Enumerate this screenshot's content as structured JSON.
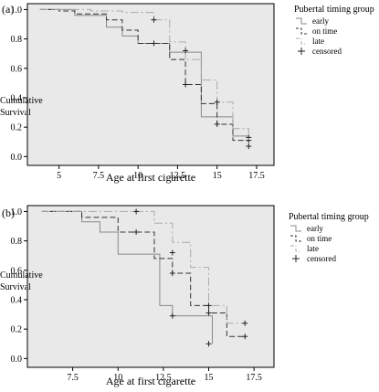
{
  "chart_data": [
    {
      "type": "line",
      "panel_label": "(a)",
      "xlabel": "Age at first cigarette",
      "ylabel_lines": [
        "Cumulative",
        "Survival"
      ],
      "xlim": [
        3,
        18.6
      ],
      "ylim": [
        -0.06,
        1.04
      ],
      "x_ticks": [
        5,
        7.5,
        10,
        12.5,
        15,
        17.5
      ],
      "x_tick_labels": [
        "5",
        "7.5",
        "10",
        "12.5",
        "15",
        "17.5"
      ],
      "y_ticks": [
        0,
        0.2,
        0.4,
        0.6,
        0.8,
        1.0
      ],
      "y_tick_labels": [
        "0.0",
        "0.2",
        "0.4",
        "0.6",
        "0.8",
        "1.0"
      ],
      "grid": false,
      "legend": {
        "title": "Pubertal timing group",
        "position": "right",
        "entries": [
          "early",
          "on time",
          "late",
          "censored"
        ]
      },
      "series": [
        {
          "name": "early",
          "color": "#888888",
          "dash": "solid",
          "steps": [
            [
              3.8,
              1.0
            ],
            [
              6,
              0.96
            ],
            [
              8,
              0.88
            ],
            [
              9,
              0.82
            ],
            [
              10,
              0.77
            ],
            [
              12,
              0.71
            ],
            [
              14,
              0.27
            ],
            [
              15,
              0.27
            ],
            [
              16,
              0.14
            ],
            [
              17,
              0.14
            ]
          ],
          "censored": [
            [
              17,
              0.13
            ]
          ]
        },
        {
          "name": "on time",
          "color": "#333333",
          "dash": "dashed",
          "steps": [
            [
              3.8,
              1.0
            ],
            [
              5,
              0.99
            ],
            [
              6,
              0.97
            ],
            [
              8,
              0.93
            ],
            [
              9,
              0.86
            ],
            [
              10,
              0.77
            ],
            [
              12,
              0.66
            ],
            [
              13,
              0.49
            ],
            [
              14,
              0.36
            ],
            [
              15,
              0.22
            ],
            [
              16,
              0.11
            ],
            [
              17,
              0.11
            ]
          ],
          "censored": [
            [
              11,
              0.77
            ],
            [
              13,
              0.49
            ],
            [
              15,
              0.22
            ],
            [
              17,
              0.11
            ]
          ]
        },
        {
          "name": "late",
          "color": "#aaaaaa",
          "dash": "dashdot",
          "steps": [
            [
              3.8,
              1.0
            ],
            [
              7,
              0.99
            ],
            [
              9,
              0.98
            ],
            [
              11,
              0.93
            ],
            [
              12,
              0.78
            ],
            [
              13,
              0.66
            ],
            [
              14,
              0.52
            ],
            [
              15,
              0.37
            ],
            [
              16,
              0.19
            ],
            [
              17,
              0.07
            ]
          ],
          "censored": [
            [
              11,
              0.93
            ],
            [
              13,
              0.72
            ],
            [
              15,
              0.37
            ],
            [
              17,
              0.07
            ]
          ]
        }
      ]
    },
    {
      "type": "line",
      "panel_label": "(b)",
      "xlabel": "Age at first cigarette",
      "ylabel_lines": [
        "Cumulative",
        "Survival"
      ],
      "xlim": [
        5,
        18.6
      ],
      "ylim": [
        -0.06,
        1.04
      ],
      "x_ticks": [
        7.5,
        10,
        12.5,
        15,
        17.5
      ],
      "x_tick_labels": [
        "7.5",
        "10",
        "12.5",
        "15",
        "17.5"
      ],
      "y_ticks": [
        0,
        0.2,
        0.4,
        0.6,
        0.8,
        1.0
      ],
      "y_tick_labels": [
        "0.0",
        "0.2",
        "0.4",
        "0.6",
        "0.8",
        "1.0"
      ],
      "grid": false,
      "legend": {
        "title": "Pubertal timing group",
        "position": "right",
        "entries": [
          "early",
          "on time",
          "late",
          "censored"
        ]
      },
      "series": [
        {
          "name": "early",
          "color": "#888888",
          "dash": "solid",
          "steps": [
            [
              5.8,
              1.0
            ],
            [
              8,
              0.93
            ],
            [
              9,
              0.86
            ],
            [
              10,
              0.71
            ],
            [
              12,
              0.71
            ],
            [
              12.3,
              0.36
            ],
            [
              13,
              0.29
            ],
            [
              15,
              0.29
            ],
            [
              15.2,
              0.1
            ]
          ],
          "censored": [
            [
              13,
              0.29
            ],
            [
              15,
              0.1
            ]
          ]
        },
        {
          "name": "on time",
          "color": "#333333",
          "dash": "dashed",
          "steps": [
            [
              5.8,
              1.0
            ],
            [
              8,
              0.96
            ],
            [
              10,
              0.86
            ],
            [
              12,
              0.68
            ],
            [
              13,
              0.58
            ],
            [
              14,
              0.36
            ],
            [
              15,
              0.31
            ],
            [
              16,
              0.15
            ],
            [
              17,
              0.15
            ]
          ],
          "censored": [
            [
              11,
              0.86
            ],
            [
              13,
              0.58
            ],
            [
              15,
              0.31
            ],
            [
              17,
              0.15
            ]
          ]
        },
        {
          "name": "late",
          "color": "#aaaaaa",
          "dash": "dashdot",
          "steps": [
            [
              5.8,
              1.0
            ],
            [
              11,
              1.0
            ],
            [
              12,
              0.92
            ],
            [
              13,
              0.79
            ],
            [
              14,
              0.62
            ],
            [
              15,
              0.36
            ],
            [
              16,
              0.24
            ],
            [
              17,
              0.24
            ]
          ],
          "censored": [
            [
              11,
              1.0
            ],
            [
              13,
              0.72
            ],
            [
              15,
              0.36
            ],
            [
              17,
              0.24
            ]
          ]
        }
      ]
    }
  ]
}
